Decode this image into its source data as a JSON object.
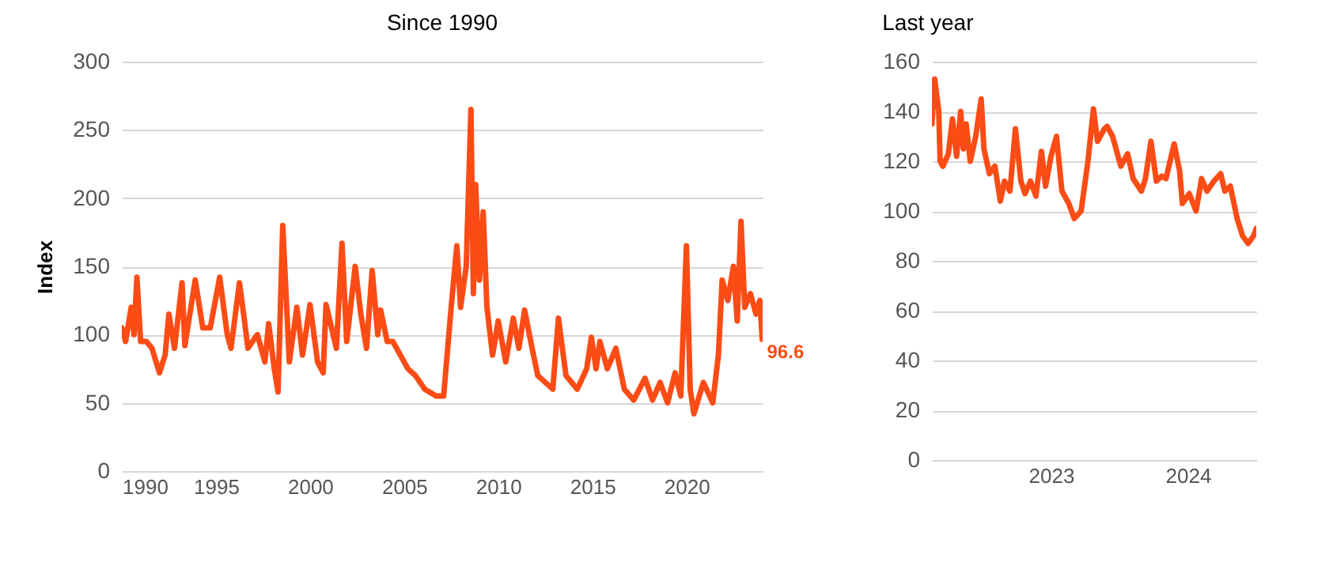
{
  "chart_data": [
    {
      "type": "line",
      "title": "Since 1990",
      "ylabel": "Index",
      "xlim": [
        1990,
        2024.05
      ],
      "xticks": [
        1990,
        1995,
        2000,
        2005,
        2010,
        2015,
        2020
      ],
      "ylim": [
        0,
        300
      ],
      "yticks": [
        0,
        50,
        100,
        150,
        200,
        250,
        300
      ],
      "grid": "y",
      "annotations": [
        {
          "text": "96.6",
          "x": 2024.03,
          "y": 96.6
        }
      ],
      "x": [
        1990.0,
        1990.2,
        1990.5,
        1990.65,
        1990.8,
        1991.0,
        1991.3,
        1991.6,
        1992.0,
        1992.3,
        1992.5,
        1992.8,
        1993.2,
        1993.35,
        1993.9,
        1994.3,
        1994.7,
        1995.2,
        1995.6,
        1995.8,
        1996.25,
        1996.5,
        1996.7,
        1997.2,
        1997.6,
        1997.8,
        1998.1,
        1998.3,
        1998.55,
        1998.9,
        1999.3,
        1999.6,
        2000.0,
        2000.4,
        2000.7,
        2000.85,
        2001.4,
        2001.7,
        2001.95,
        2002.4,
        2002.7,
        2003.0,
        2003.3,
        2003.6,
        2003.75,
        2004.1,
        2004.4,
        2004.8,
        2005.2,
        2005.6,
        2006.1,
        2006.7,
        2007.1,
        2007.5,
        2007.8,
        2008.0,
        2008.3,
        2008.55,
        2008.68,
        2008.8,
        2009.0,
        2009.2,
        2009.4,
        2009.7,
        2010.0,
        2010.4,
        2010.8,
        2011.1,
        2011.4,
        2011.8,
        2012.1,
        2012.5,
        2012.9,
        2013.2,
        2013.6,
        2014.2,
        2014.7,
        2014.95,
        2015.2,
        2015.4,
        2015.8,
        2016.25,
        2016.7,
        2017.2,
        2017.8,
        2018.2,
        2018.6,
        2019.0,
        2019.4,
        2019.7,
        2020.0,
        2020.2,
        2020.4,
        2020.9,
        2021.4,
        2021.7,
        2021.9,
        2022.2,
        2022.5,
        2022.7,
        2022.9,
        2023.1,
        2023.4,
        2023.7,
        2023.9,
        2024.03
      ],
      "series": [
        {
          "color": "#fc4c16",
          "values": [
            105,
            95,
            120,
            100,
            142,
            95,
            95,
            90,
            72,
            85,
            115,
            90,
            138,
            92,
            140,
            105,
            105,
            142,
            100,
            90,
            138,
            112,
            90,
            100,
            80,
            108,
            75,
            58,
            180,
            80,
            120,
            85,
            122,
            80,
            72,
            122,
            90,
            167,
            95,
            150,
            115,
            90,
            147,
            100,
            118,
            95,
            95,
            85,
            75,
            70,
            60,
            55,
            55,
            120,
            165,
            120,
            150,
            265,
            130,
            210,
            140,
            190,
            120,
            85,
            110,
            80,
            112,
            90,
            118,
            90,
            70,
            65,
            60,
            112,
            70,
            60,
            75,
            98,
            75,
            95,
            75,
            90,
            60,
            52,
            68,
            52,
            65,
            50,
            72,
            55,
            165,
            60,
            42,
            65,
            50,
            85,
            140,
            125,
            150,
            110,
            183,
            120,
            130,
            115,
            125,
            96.6
          ]
        }
      ]
    },
    {
      "type": "line",
      "title": "Last year",
      "xlim": [
        2022.13,
        2024.5
      ],
      "xticks": [
        2023,
        2024
      ],
      "ylim": [
        0,
        160
      ],
      "yticks": [
        0,
        20,
        40,
        60,
        80,
        100,
        120,
        140,
        160
      ],
      "grid": "y",
      "x": [
        2022.13,
        2022.15,
        2022.18,
        2022.19,
        2022.21,
        2022.25,
        2022.28,
        2022.31,
        2022.34,
        2022.36,
        2022.38,
        2022.41,
        2022.45,
        2022.49,
        2022.51,
        2022.55,
        2022.59,
        2022.63,
        2022.66,
        2022.7,
        2022.74,
        2022.78,
        2022.81,
        2022.85,
        2022.89,
        2022.93,
        2022.96,
        2023.0,
        2023.04,
        2023.08,
        2023.13,
        2023.17,
        2023.22,
        2023.27,
        2023.31,
        2023.34,
        2023.39,
        2023.41,
        2023.45,
        2023.51,
        2023.56,
        2023.6,
        2023.66,
        2023.69,
        2023.73,
        2023.77,
        2023.81,
        2023.84,
        2023.9,
        2023.94,
        2023.96,
        2024.01,
        2024.06,
        2024.1,
        2024.14,
        2024.19,
        2024.24,
        2024.27,
        2024.31,
        2024.36,
        2024.4,
        2024.44,
        2024.48,
        2024.5
      ],
      "series": [
        {
          "color": "#fc4c16",
          "values": [
            135,
            153,
            140,
            120,
            118,
            123,
            137,
            122,
            140,
            125,
            135,
            120,
            130,
            145,
            125,
            115,
            118,
            104,
            112,
            108,
            133,
            112,
            107,
            112,
            106,
            124,
            110,
            122,
            130,
            108,
            103,
            97,
            100,
            120,
            141,
            128,
            133,
            134,
            130,
            118,
            123,
            113,
            108,
            113,
            128,
            112,
            114,
            113,
            127,
            116,
            103,
            107,
            100,
            113,
            108,
            112,
            115,
            108,
            110,
            97,
            90,
            87,
            90,
            93
          ]
        }
      ]
    }
  ]
}
